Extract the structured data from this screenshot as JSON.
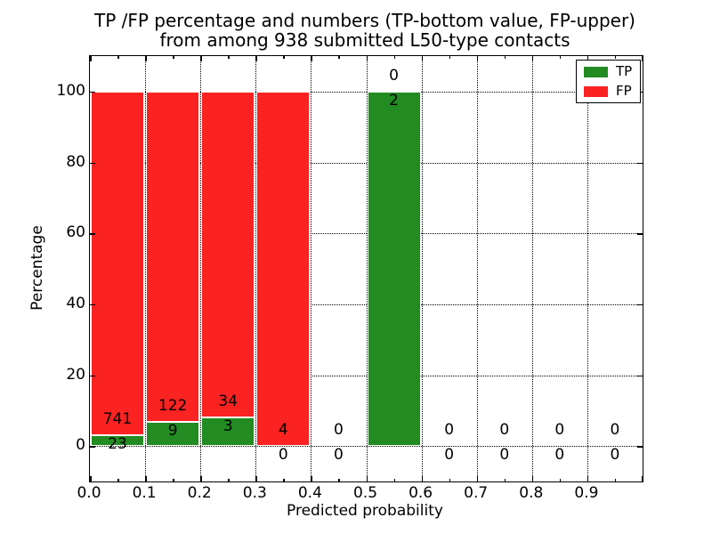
{
  "figure": {
    "title_line1": "TP /FP percentage and numbers (TP-bottom value, FP-upper)",
    "title_line2": "from among 938 submitted L50-type contacts",
    "xlabel": "Predicted probability",
    "ylabel": "Percentage"
  },
  "legend": {
    "position": "upper right",
    "entries": [
      {
        "label": "TP",
        "color": "#228b22"
      },
      {
        "label": "FP",
        "color": "#fb2222"
      }
    ]
  },
  "chart_data": {
    "type": "bar",
    "stacked": true,
    "title": "TP /FP percentage and numbers (TP-bottom value, FP-upper) from among 938 submitted L50-type contacts",
    "xlabel": "Predicted probability",
    "ylabel": "Percentage",
    "xlim": [
      0.0,
      1.0
    ],
    "ylim": [
      -10,
      110
    ],
    "xticks": [
      "0.0",
      "0.1",
      "0.2",
      "0.3",
      "0.4",
      "0.5",
      "0.6",
      "0.7",
      "0.8",
      "0.9"
    ],
    "yticks": [
      "0",
      "20",
      "40",
      "60",
      "80",
      "100"
    ],
    "grid": "dotted",
    "legend_position": "upper right",
    "bin_edges": [
      0.0,
      0.1,
      0.2,
      0.3,
      0.4,
      0.5,
      0.6,
      0.7,
      0.8,
      0.9,
      1.0
    ],
    "bin_width": 0.1,
    "normalization": "each non-empty bin stacked to 100% of bin total; labels show raw counts (TP below green top, FP above)",
    "total_contacts": 938,
    "series": [
      {
        "name": "TP",
        "color": "#228b22",
        "counts": [
          23,
          9,
          3,
          0,
          0,
          2,
          0,
          0,
          0,
          0
        ],
        "percent": [
          3.01,
          6.87,
          8.11,
          0,
          0,
          100,
          0,
          0,
          0,
          0
        ]
      },
      {
        "name": "FP",
        "color": "#fb2222",
        "counts": [
          741,
          122,
          34,
          4,
          0,
          0,
          0,
          0,
          0,
          0
        ],
        "percent": [
          96.99,
          93.13,
          91.89,
          100,
          0,
          0,
          0,
          0,
          0,
          0
        ]
      }
    ]
  }
}
